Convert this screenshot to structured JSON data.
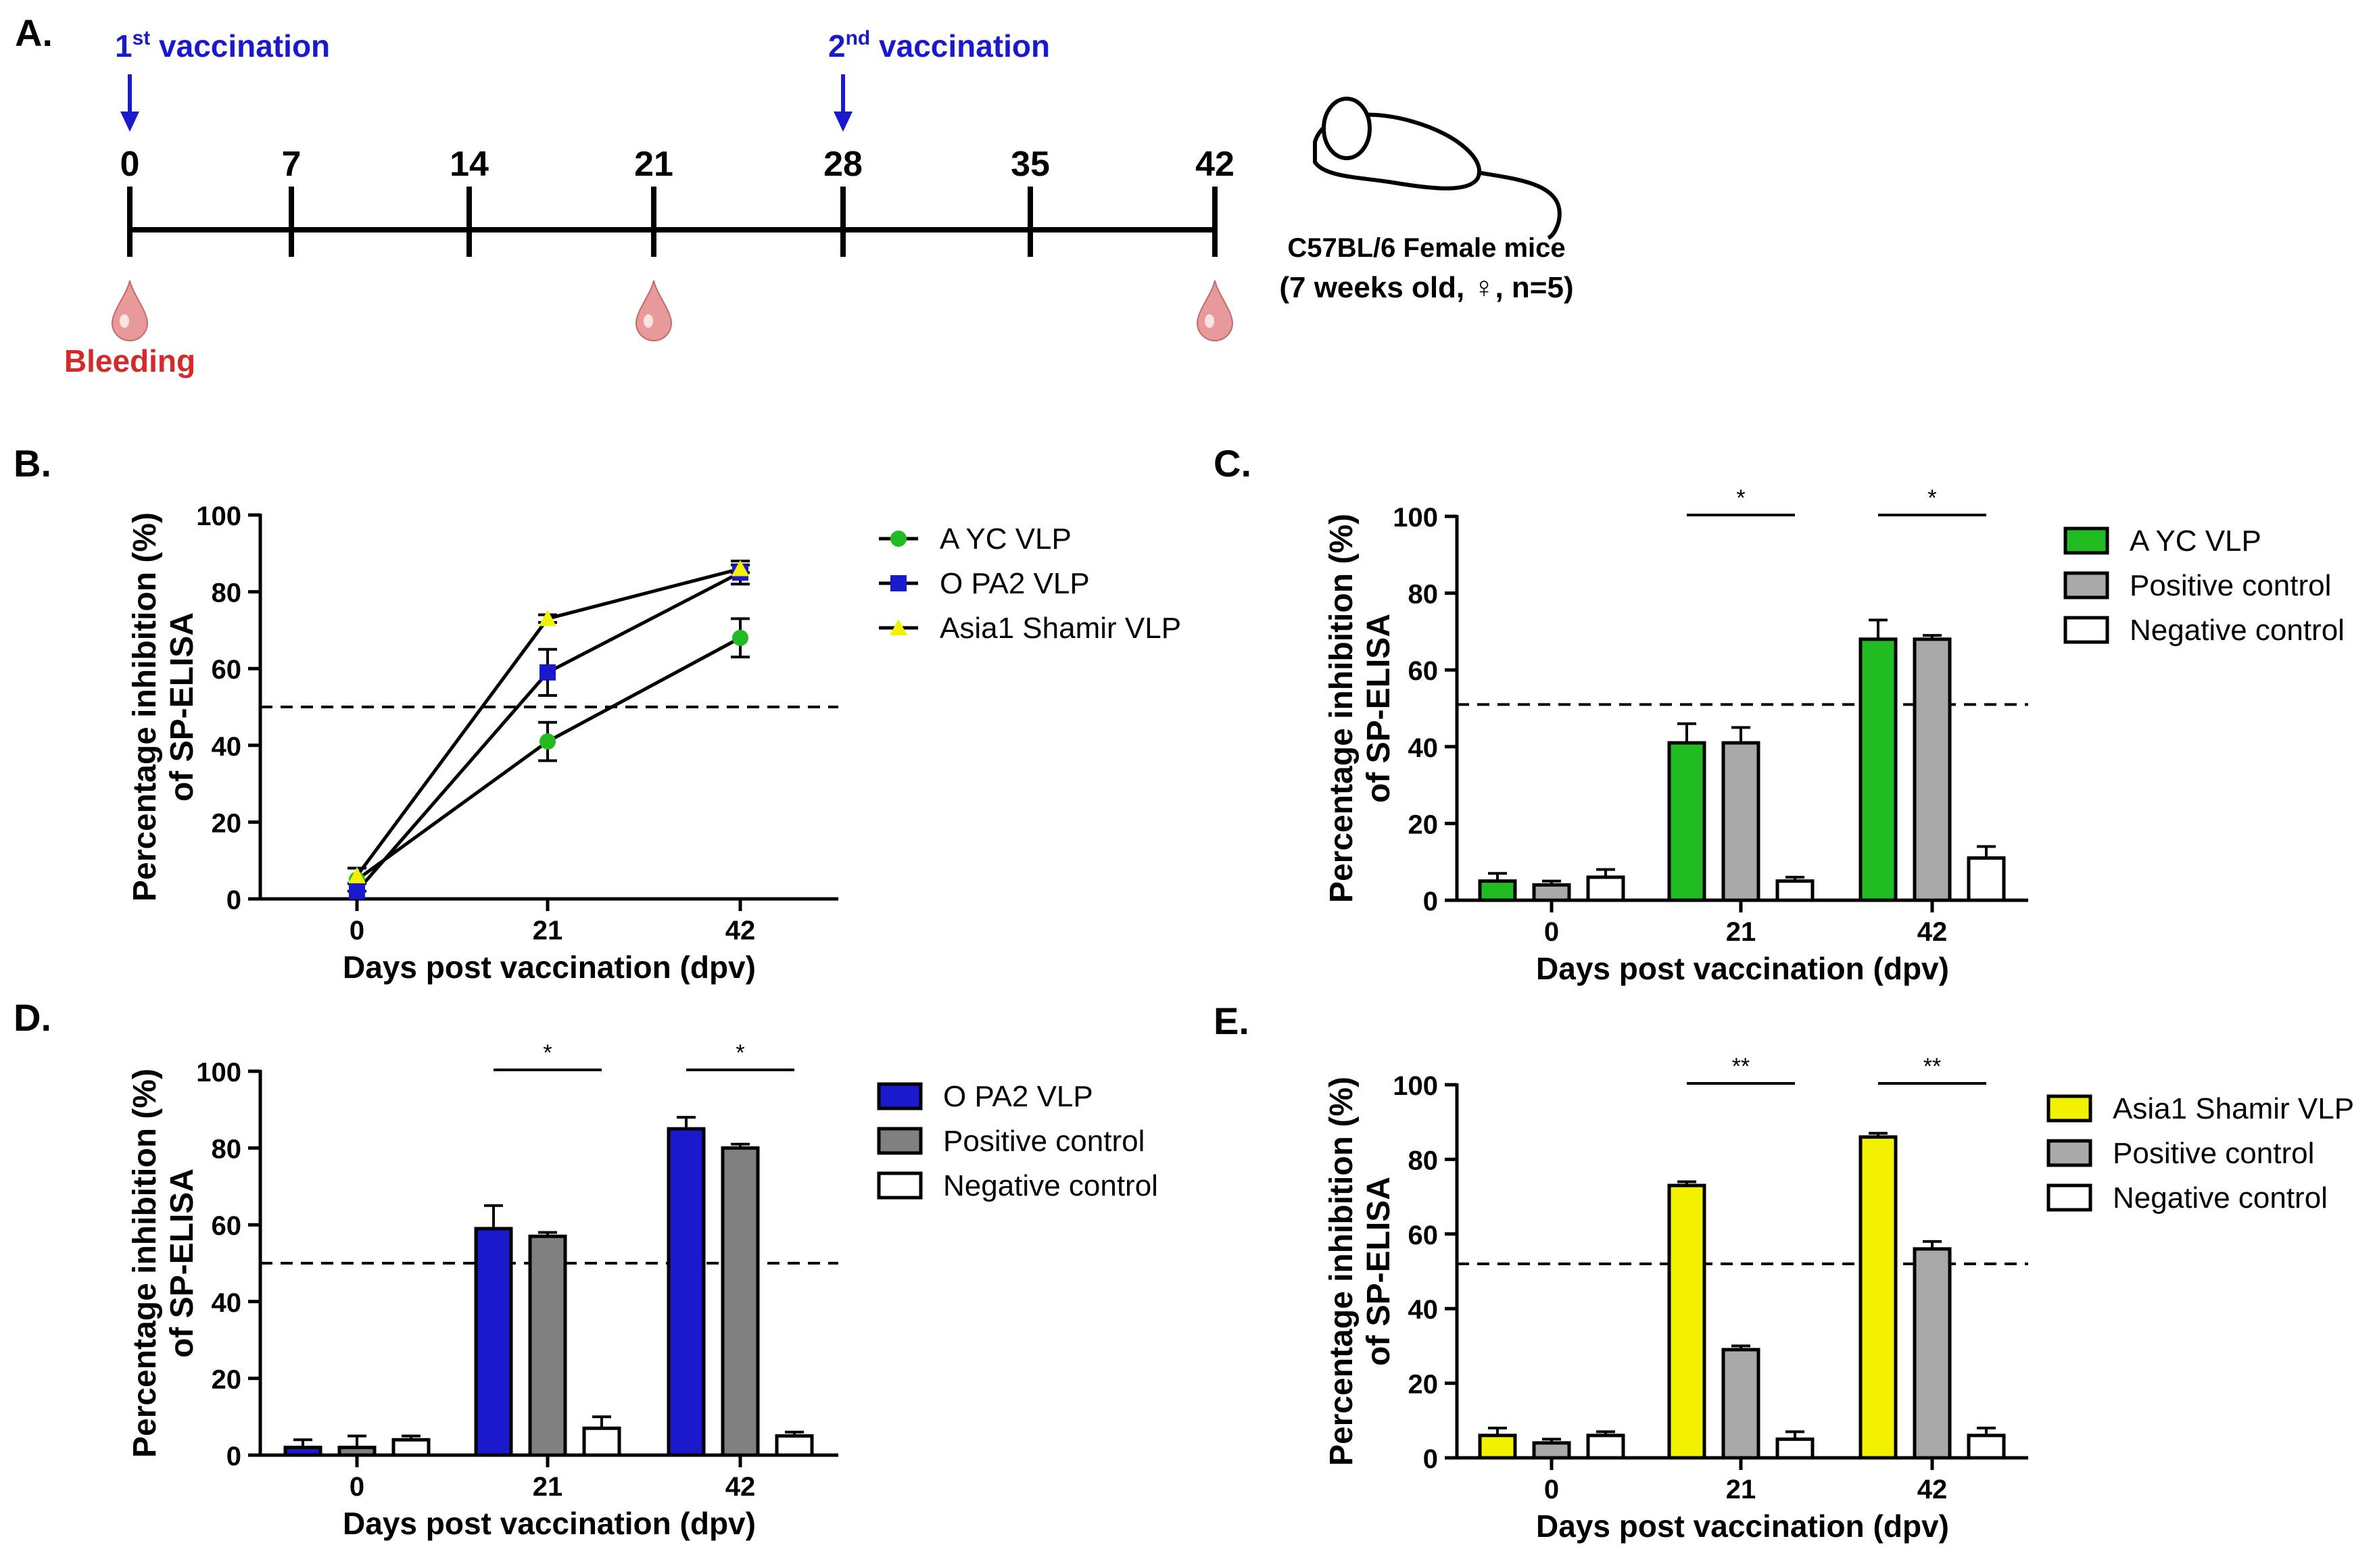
{
  "panel_a": {
    "label": "A.",
    "days": [
      "0",
      "7",
      "14",
      "21",
      "28",
      "35",
      "42"
    ],
    "vaccinations": [
      {
        "num": "1",
        "sup": "st",
        "text": "vaccination",
        "day_index": 0
      },
      {
        "num": "2",
        "sup": "nd",
        "text": "vaccination",
        "day_index": 4
      }
    ],
    "bleeding_days": [
      0,
      3,
      6
    ],
    "bleeding_label": "Bleeding",
    "mouse_line1": "C57BL/6 Female mice",
    "mouse_line2": "(7 weeks old, ♀, n=5)",
    "colors": {
      "arrow": "#1a1acc",
      "bleeding": "#d42a2a",
      "drop": "#e89a9a"
    }
  },
  "chart_data": [
    {
      "id": "B",
      "label": "B.",
      "type": "line",
      "x": [
        0,
        21,
        42
      ],
      "x_ticks": [
        "0",
        "21",
        "42"
      ],
      "ylim": [
        0,
        100
      ],
      "y_ticks": [
        "0",
        "20",
        "40",
        "60",
        "80",
        "100"
      ],
      "ylabel_line1": "Percentage inhibition (%)",
      "ylabel_line2": "of SP-ELISA",
      "xlabel": "Days post vaccination (dpv)",
      "threshold": 50,
      "series": [
        {
          "name": "A YC VLP",
          "values": [
            5,
            41,
            68
          ],
          "errors": [
            3,
            5,
            5
          ],
          "color": "#22bb22",
          "marker": "circle"
        },
        {
          "name": "O PA2 VLP",
          "values": [
            2,
            59,
            85
          ],
          "errors": [
            2,
            6,
            3
          ],
          "color": "#1a1acc",
          "marker": "square"
        },
        {
          "name": "Asia1 Shamir VLP",
          "values": [
            6,
            73,
            86
          ],
          "errors": [
            2,
            1,
            1
          ],
          "color": "#f2f200",
          "marker": "triangle"
        }
      ]
    },
    {
      "id": "C",
      "label": "C.",
      "type": "bar",
      "categories": [
        "0",
        "21",
        "42"
      ],
      "ylim": [
        0,
        100
      ],
      "y_ticks": [
        "0",
        "20",
        "40",
        "60",
        "80",
        "100"
      ],
      "ylabel_line1": "Percentage inhibition (%)",
      "ylabel_line2": "of SP-ELISA",
      "xlabel": "Days post vaccination (dpv)",
      "threshold": 51,
      "significance": [
        {
          "category_index": 1,
          "label": "*"
        },
        {
          "category_index": 2,
          "label": "*"
        }
      ],
      "series": [
        {
          "name": "A YC VLP",
          "values": [
            5,
            41,
            68
          ],
          "errors": [
            2,
            5,
            5
          ],
          "color": "#22bb22"
        },
        {
          "name": "Positive control",
          "values": [
            4,
            41,
            68
          ],
          "errors": [
            1,
            4,
            1
          ],
          "color": "#a9a9a9"
        },
        {
          "name": "Negative control",
          "values": [
            6,
            5,
            11
          ],
          "errors": [
            2,
            1,
            3
          ],
          "color": "#ffffff"
        }
      ]
    },
    {
      "id": "D",
      "label": "D.",
      "type": "bar",
      "categories": [
        "0",
        "21",
        "42"
      ],
      "ylim": [
        0,
        100
      ],
      "y_ticks": [
        "0",
        "20",
        "40",
        "60",
        "80",
        "100"
      ],
      "ylabel_line1": "Percentage inhibition (%)",
      "ylabel_line2": "of SP-ELISA",
      "xlabel": "Days post vaccination (dpv)",
      "threshold": 50,
      "significance": [
        {
          "category_index": 1,
          "label": "*"
        },
        {
          "category_index": 2,
          "label": "*"
        }
      ],
      "series": [
        {
          "name": "O PA2 VLP",
          "values": [
            2,
            59,
            85
          ],
          "errors": [
            2,
            6,
            3
          ],
          "color": "#1a1acc"
        },
        {
          "name": "Positive control",
          "values": [
            2,
            57,
            80
          ],
          "errors": [
            3,
            1,
            1
          ],
          "color": "#808080"
        },
        {
          "name": "Negative control",
          "values": [
            4,
            7,
            5
          ],
          "errors": [
            1,
            3,
            1
          ],
          "color": "#ffffff"
        }
      ]
    },
    {
      "id": "E",
      "label": "E.",
      "type": "bar",
      "categories": [
        "0",
        "21",
        "42"
      ],
      "ylim": [
        0,
        100
      ],
      "y_ticks": [
        "0",
        "20",
        "40",
        "60",
        "80",
        "100"
      ],
      "ylabel_line1": "Percentage inhibition (%)",
      "ylabel_line2": "of SP-ELISA",
      "xlabel": "Days post vaccination (dpv)",
      "threshold": 52,
      "significance": [
        {
          "category_index": 1,
          "label": "**"
        },
        {
          "category_index": 2,
          "label": "**"
        }
      ],
      "series": [
        {
          "name": "Asia1 Shamir VLP",
          "values": [
            6,
            73,
            86
          ],
          "errors": [
            2,
            1,
            1
          ],
          "color": "#f2f200"
        },
        {
          "name": "Positive control",
          "values": [
            4,
            29,
            56
          ],
          "errors": [
            1,
            1,
            2
          ],
          "color": "#a9a9a9"
        },
        {
          "name": "Negative control",
          "values": [
            6,
            5,
            6
          ],
          "errors": [
            1,
            2,
            2
          ],
          "color": "#ffffff"
        }
      ]
    }
  ]
}
